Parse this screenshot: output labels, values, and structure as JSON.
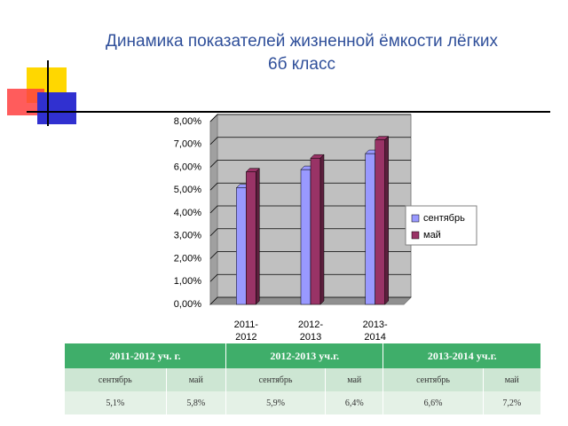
{
  "chart_data": {
    "type": "bar",
    "title": "Динамика показателей жизненной ёмкости лёгких",
    "subtitle": "6б класс",
    "categories": [
      "2011-2012",
      "2012-2013",
      "2013-2014"
    ],
    "series": [
      {
        "name": "сентябрь",
        "color": "#9999ff",
        "values": [
          5.1,
          5.9,
          6.6
        ]
      },
      {
        "name": "май",
        "color": "#993366",
        "values": [
          5.8,
          6.4,
          7.2
        ]
      }
    ],
    "ylim": [
      0,
      8
    ],
    "yticks": [
      {
        "value": 0,
        "label": "0,00%"
      },
      {
        "value": 1,
        "label": "1,00%"
      },
      {
        "value": 2,
        "label": "2,00%"
      },
      {
        "value": 3,
        "label": "3,00%"
      },
      {
        "value": 4,
        "label": "4,00%"
      },
      {
        "value": 5,
        "label": "5,00%"
      },
      {
        "value": 6,
        "label": "6,00%"
      },
      {
        "value": 7,
        "label": "7,00%"
      },
      {
        "value": 8,
        "label": "8,00%"
      }
    ],
    "grid": true,
    "legend": "right"
  },
  "table": {
    "headers": [
      "2011-2012 уч. г.",
      "2012-2013 уч.г.",
      "2013-2014 уч.г."
    ],
    "subheaders": [
      "сентябрь",
      "май",
      "сентябрь",
      "май",
      "сентябрь",
      "май"
    ],
    "values": [
      "5,1%",
      "5,8%",
      "5,9%",
      "6,4%",
      "6,6%",
      "7,2%"
    ]
  }
}
